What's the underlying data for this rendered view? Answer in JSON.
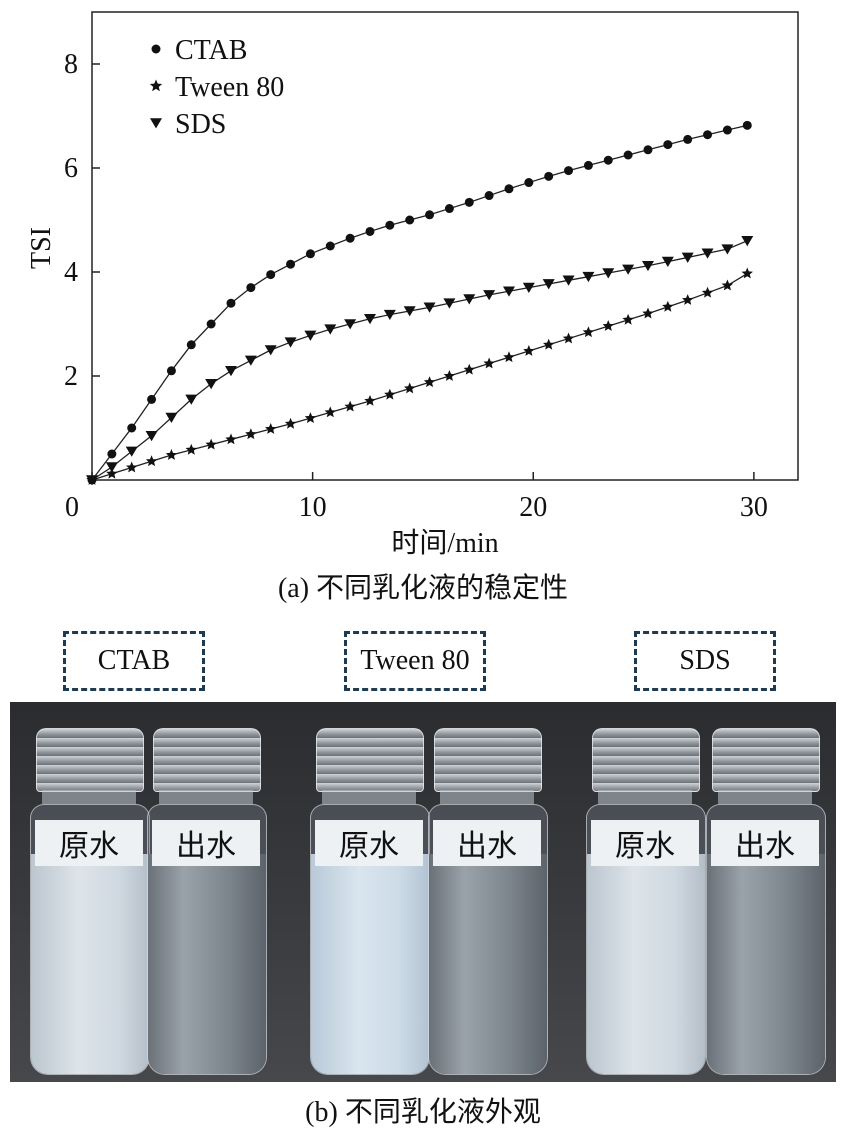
{
  "chart_data": {
    "type": "line",
    "xlabel": "时间/min",
    "ylabel": "TSI",
    "xlim": [
      0,
      32
    ],
    "ylim": [
      0,
      9
    ],
    "xticks": [
      0,
      10,
      20,
      30
    ],
    "yticks": [
      2,
      4,
      6,
      8
    ],
    "legend_position": "top-left",
    "series": [
      {
        "name": "CTAB",
        "marker": "circle",
        "x": [
          0,
          0.9,
          1.8,
          2.7,
          3.6,
          4.5,
          5.4,
          6.3,
          7.2,
          8.1,
          9.0,
          9.9,
          10.8,
          11.7,
          12.6,
          13.5,
          14.4,
          15.3,
          16.2,
          17.1,
          18.0,
          18.9,
          19.8,
          20.7,
          21.6,
          22.5,
          23.4,
          24.3,
          25.2,
          26.1,
          27.0,
          27.9,
          28.8,
          29.7
        ],
        "values": [
          0,
          0.5,
          1.0,
          1.55,
          2.1,
          2.6,
          3.0,
          3.4,
          3.7,
          3.95,
          4.15,
          4.35,
          4.5,
          4.65,
          4.78,
          4.9,
          5.0,
          5.1,
          5.22,
          5.34,
          5.47,
          5.6,
          5.72,
          5.84,
          5.95,
          6.05,
          6.15,
          6.25,
          6.35,
          6.45,
          6.55,
          6.64,
          6.73,
          6.82
        ]
      },
      {
        "name": "Tween 80",
        "marker": "star",
        "x": [
          0,
          0.9,
          1.8,
          2.7,
          3.6,
          4.5,
          5.4,
          6.3,
          7.2,
          8.1,
          9.0,
          9.9,
          10.8,
          11.7,
          12.6,
          13.5,
          14.4,
          15.3,
          16.2,
          17.1,
          18.0,
          18.9,
          19.8,
          20.7,
          21.6,
          22.5,
          23.4,
          24.3,
          25.2,
          26.1,
          27.0,
          27.9,
          28.8,
          29.7
        ],
        "values": [
          0,
          0.12,
          0.24,
          0.36,
          0.48,
          0.58,
          0.68,
          0.78,
          0.88,
          0.98,
          1.08,
          1.19,
          1.3,
          1.41,
          1.52,
          1.64,
          1.76,
          1.88,
          2.0,
          2.12,
          2.24,
          2.36,
          2.48,
          2.6,
          2.72,
          2.84,
          2.96,
          3.08,
          3.2,
          3.33,
          3.46,
          3.6,
          3.74,
          3.97
        ]
      },
      {
        "name": "SDS",
        "marker": "triangle-down",
        "x": [
          0,
          0.9,
          1.8,
          2.7,
          3.6,
          4.5,
          5.4,
          6.3,
          7.2,
          8.1,
          9.0,
          9.9,
          10.8,
          11.7,
          12.6,
          13.5,
          14.4,
          15.3,
          16.2,
          17.1,
          18.0,
          18.9,
          19.8,
          20.7,
          21.6,
          22.5,
          23.4,
          24.3,
          25.2,
          26.1,
          27.0,
          27.9,
          28.8,
          29.7
        ],
        "values": [
          0,
          0.25,
          0.55,
          0.85,
          1.2,
          1.55,
          1.85,
          2.1,
          2.3,
          2.5,
          2.65,
          2.78,
          2.9,
          3.0,
          3.1,
          3.18,
          3.25,
          3.32,
          3.4,
          3.48,
          3.56,
          3.63,
          3.7,
          3.77,
          3.84,
          3.91,
          3.98,
          4.05,
          4.12,
          4.2,
          4.28,
          4.36,
          4.44,
          4.6
        ]
      }
    ]
  },
  "captions": {
    "chart": "(a) 不同乳化液的稳定性",
    "photo": "(b) 不同乳化液外观"
  },
  "photo": {
    "groups": [
      {
        "label": "CTAB",
        "vials": [
          "原水",
          "出水"
        ]
      },
      {
        "label": "Tween 80",
        "vials": [
          "原水",
          "出水"
        ]
      },
      {
        "label": "SDS",
        "vials": [
          "原水",
          "出水"
        ]
      }
    ]
  }
}
